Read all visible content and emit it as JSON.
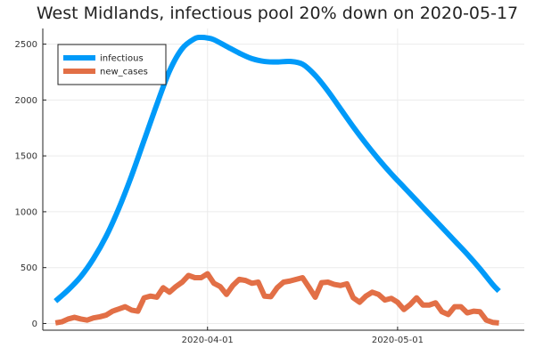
{
  "chart_data": {
    "type": "line",
    "title": "West Midlands, infectious pool 20% down on 2020-05-17",
    "xlabel": "",
    "ylabel": "",
    "x_range": [
      "2020-03-06",
      "2020-05-21"
    ],
    "ylim": [
      -60,
      2640
    ],
    "x_ticks": [
      {
        "date": "2020-04-01",
        "label": "2020-04-01"
      },
      {
        "date": "2020-05-01",
        "label": "2020-05-01"
      }
    ],
    "y_ticks": [
      0,
      500,
      1000,
      1500,
      2000,
      2500
    ],
    "grid": true,
    "legend_position": "top-left",
    "series": [
      {
        "name": "infectious",
        "color": "#009af9",
        "x": [
          "2020-03-08",
          "2020-03-10",
          "2020-03-12",
          "2020-03-14",
          "2020-03-16",
          "2020-03-18",
          "2020-03-20",
          "2020-03-22",
          "2020-03-24",
          "2020-03-26",
          "2020-03-28",
          "2020-03-30",
          "2020-03-31",
          "2020-04-01",
          "2020-04-02",
          "2020-04-04",
          "2020-04-06",
          "2020-04-08",
          "2020-04-10",
          "2020-04-12",
          "2020-04-14",
          "2020-04-16",
          "2020-04-18",
          "2020-04-20",
          "2020-04-22",
          "2020-04-24",
          "2020-04-26",
          "2020-04-28",
          "2020-04-30",
          "2020-05-02",
          "2020-05-04",
          "2020-05-06",
          "2020-05-08",
          "2020-05-10",
          "2020-05-12",
          "2020-05-14",
          "2020-05-16",
          "2020-05-17"
        ],
        "values": [
          200,
          300,
          420,
          580,
          780,
          1030,
          1320,
          1640,
          1960,
          2260,
          2460,
          2550,
          2560,
          2555,
          2540,
          2480,
          2420,
          2370,
          2345,
          2340,
          2345,
          2320,
          2220,
          2080,
          1920,
          1760,
          1610,
          1470,
          1340,
          1220,
          1100,
          980,
          860,
          740,
          620,
          490,
          350,
          290
        ]
      },
      {
        "name": "new_cases",
        "color": "#e26f46",
        "x": [
          "2020-03-08",
          "2020-03-09",
          "2020-03-10",
          "2020-03-11",
          "2020-03-12",
          "2020-03-13",
          "2020-03-14",
          "2020-03-15",
          "2020-03-16",
          "2020-03-17",
          "2020-03-18",
          "2020-03-19",
          "2020-03-20",
          "2020-03-21",
          "2020-03-22",
          "2020-03-23",
          "2020-03-24",
          "2020-03-25",
          "2020-03-26",
          "2020-03-27",
          "2020-03-28",
          "2020-03-29",
          "2020-03-30",
          "2020-03-31",
          "2020-04-01",
          "2020-04-02",
          "2020-04-03",
          "2020-04-04",
          "2020-04-05",
          "2020-04-06",
          "2020-04-07",
          "2020-04-08",
          "2020-04-09",
          "2020-04-10",
          "2020-04-11",
          "2020-04-12",
          "2020-04-13",
          "2020-04-14",
          "2020-04-15",
          "2020-04-16",
          "2020-04-17",
          "2020-04-18",
          "2020-04-19",
          "2020-04-20",
          "2020-04-21",
          "2020-04-22",
          "2020-04-23",
          "2020-04-24",
          "2020-04-25",
          "2020-04-26",
          "2020-04-27",
          "2020-04-28",
          "2020-04-29",
          "2020-04-30",
          "2020-05-01",
          "2020-05-02",
          "2020-05-03",
          "2020-05-04",
          "2020-05-05",
          "2020-05-06",
          "2020-05-07",
          "2020-05-08",
          "2020-05-09",
          "2020-05-10",
          "2020-05-11",
          "2020-05-12",
          "2020-05-13",
          "2020-05-14",
          "2020-05-15",
          "2020-05-16",
          "2020-05-17"
        ],
        "values": [
          5,
          15,
          40,
          55,
          40,
          30,
          50,
          60,
          75,
          110,
          130,
          150,
          120,
          110,
          230,
          245,
          235,
          320,
          280,
          330,
          370,
          430,
          410,
          410,
          445,
          360,
          330,
          260,
          340,
          395,
          385,
          360,
          370,
          245,
          240,
          320,
          370,
          380,
          395,
          410,
          325,
          235,
          365,
          370,
          350,
          340,
          355,
          230,
          190,
          245,
          280,
          260,
          210,
          225,
          190,
          125,
          170,
          230,
          165,
          165,
          185,
          105,
          80,
          150,
          150,
          95,
          110,
          105,
          30,
          10,
          5
        ]
      }
    ]
  }
}
